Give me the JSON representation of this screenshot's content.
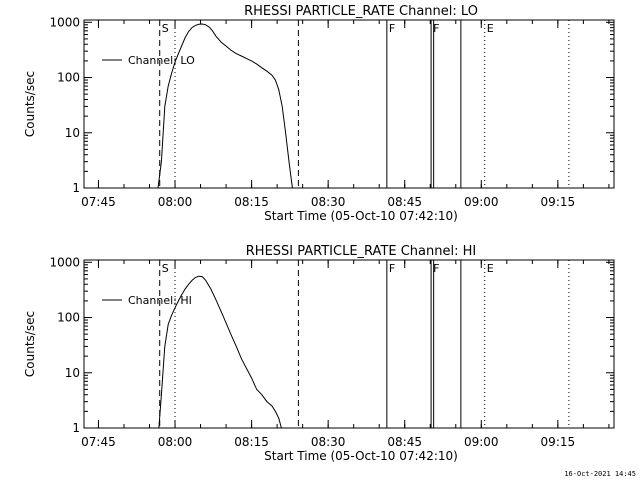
{
  "footer": {
    "timestamp": "16-Oct-2021 14:45"
  },
  "chart_data": [
    {
      "type": "line",
      "title": "RHESSI PARTICLE_RATE Channel: LO",
      "xlabel": "Start Time (05-Oct-10 07:42:10)",
      "ylabel": "Counts/sec",
      "yscale": "log",
      "ylim": [
        1,
        1100
      ],
      "xlim": [
        "07:42:10",
        "09:26:00"
      ],
      "xticks": [
        "07:45",
        "08:00",
        "08:15",
        "08:30",
        "08:45",
        "09:00",
        "09:15"
      ],
      "yticks": [
        "1",
        "10",
        "100",
        "1000"
      ],
      "legend": {
        "position": "top-left",
        "entries": [
          "Channel: LO"
        ]
      },
      "series": [
        {
          "name": "Channel: LO",
          "x": [
            "07:56:40",
            "07:57:20",
            "07:58:00",
            "07:58:40",
            "07:59:20",
            "08:00:00",
            "08:00:40",
            "08:01:20",
            "08:02:00",
            "08:02:40",
            "08:03:20",
            "08:04:00",
            "08:04:40",
            "08:05:20",
            "08:06:00",
            "08:06:40",
            "08:07:20",
            "08:08:00",
            "08:09:00",
            "08:10:00",
            "08:11:00",
            "08:12:00",
            "08:13:00",
            "08:14:00",
            "08:15:00",
            "08:16:00",
            "08:17:00",
            "08:18:00",
            "08:19:00",
            "08:19:40",
            "08:20:20",
            "08:21:00",
            "08:21:40",
            "08:22:20",
            "08:23:00"
          ],
          "y": [
            1,
            3,
            30,
            70,
            120,
            190,
            270,
            380,
            530,
            680,
            800,
            880,
            920,
            930,
            900,
            820,
            700,
            560,
            440,
            370,
            310,
            270,
            245,
            220,
            200,
            175,
            150,
            130,
            110,
            90,
            60,
            30,
            10,
            3,
            1
          ]
        }
      ],
      "markers": [
        {
          "label": "S",
          "time": "07:57:00",
          "style": "dashed"
        },
        {
          "label": "",
          "time": "08:00:00",
          "style": "dotted"
        },
        {
          "label": "",
          "time": "08:24:10",
          "style": "dashed"
        },
        {
          "label": "F",
          "time": "08:41:30",
          "style": "solid"
        },
        {
          "label": "F",
          "time": "08:50:10",
          "style": "solid"
        },
        {
          "label": "",
          "time": "08:50:40",
          "style": "solid"
        },
        {
          "label": "",
          "time": "08:56:00",
          "style": "solid"
        },
        {
          "label": "E",
          "time": "09:00:40",
          "style": "dotted"
        },
        {
          "label": "",
          "time": "09:17:10",
          "style": "dotted"
        }
      ]
    },
    {
      "type": "line",
      "title": "RHESSI PARTICLE_RATE Channel: HI",
      "xlabel": "Start Time (05-Oct-10 07:42:10)",
      "ylabel": "Counts/sec",
      "yscale": "log",
      "ylim": [
        1,
        1100
      ],
      "xlim": [
        "07:42:10",
        "09:26:00"
      ],
      "xticks": [
        "07:45",
        "08:00",
        "08:15",
        "08:30",
        "08:45",
        "09:00",
        "09:15"
      ],
      "yticks": [
        "1",
        "10",
        "100",
        "1000"
      ],
      "legend": {
        "position": "top-left",
        "entries": [
          "Channel: HI"
        ]
      },
      "series": [
        {
          "name": "Channel: HI",
          "x": [
            "07:56:50",
            "07:57:20",
            "07:58:00",
            "07:58:40",
            "07:59:20",
            "08:00:00",
            "08:00:40",
            "08:01:20",
            "08:02:00",
            "08:02:40",
            "08:03:20",
            "08:04:00",
            "08:04:40",
            "08:05:20",
            "08:06:00",
            "08:07:00",
            "08:08:00",
            "08:09:00",
            "08:10:00",
            "08:11:00",
            "08:12:00",
            "08:13:00",
            "08:14:00",
            "08:15:00",
            "08:16:00",
            "08:17:00",
            "08:18:00",
            "08:19:00",
            "08:19:40",
            "08:20:20",
            "08:20:50"
          ],
          "y": [
            1,
            4,
            30,
            75,
            110,
            150,
            200,
            260,
            330,
            400,
            470,
            530,
            560,
            550,
            470,
            330,
            210,
            130,
            80,
            48,
            30,
            18,
            12,
            8,
            5,
            4,
            3,
            2.5,
            2,
            1.5,
            1
          ]
        }
      ],
      "markers": [
        {
          "label": "S",
          "time": "07:57:00",
          "style": "dashed"
        },
        {
          "label": "",
          "time": "08:00:00",
          "style": "dotted"
        },
        {
          "label": "",
          "time": "08:24:10",
          "style": "dashed"
        },
        {
          "label": "F",
          "time": "08:41:30",
          "style": "solid"
        },
        {
          "label": "F",
          "time": "08:50:10",
          "style": "solid"
        },
        {
          "label": "",
          "time": "08:50:40",
          "style": "solid"
        },
        {
          "label": "",
          "time": "08:56:00",
          "style": "solid"
        },
        {
          "label": "E",
          "time": "09:00:40",
          "style": "dotted"
        },
        {
          "label": "",
          "time": "09:17:10",
          "style": "dotted"
        }
      ]
    }
  ]
}
